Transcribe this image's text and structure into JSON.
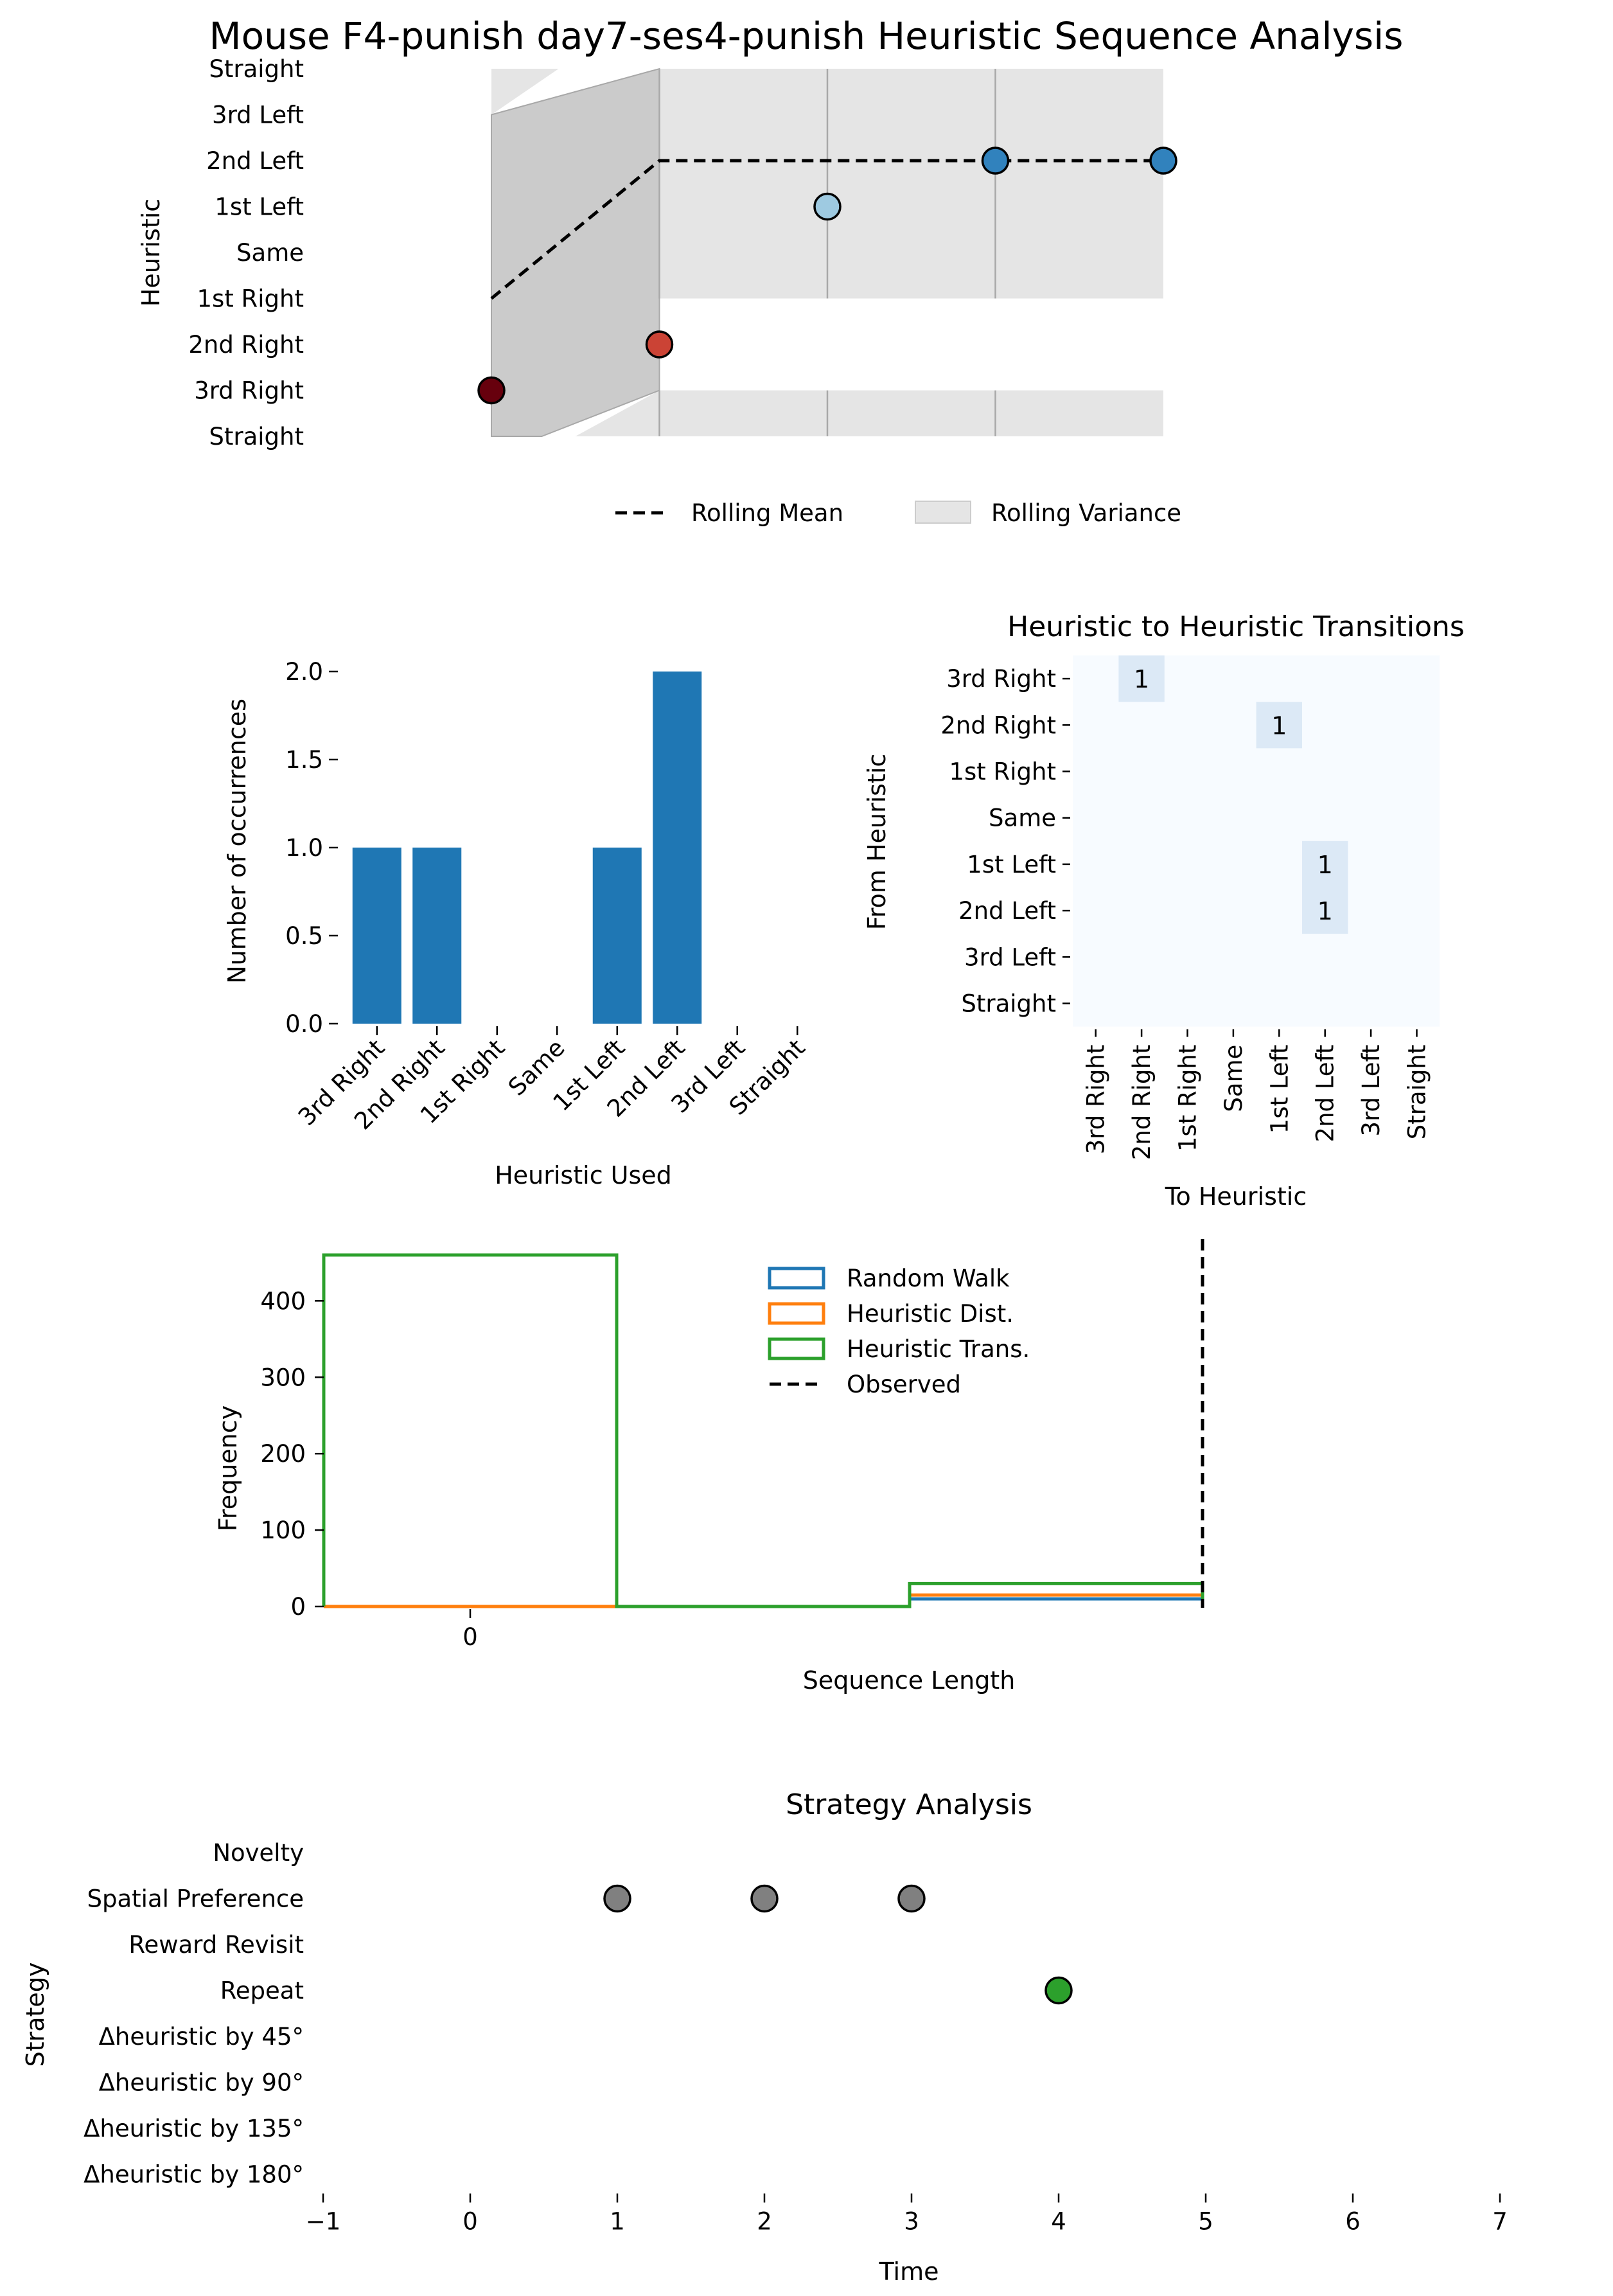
{
  "figure_title": "Mouse F4-punish day7-ses4-punish Heuristic Sequence Analysis",
  "colors": {
    "bar": "#1f77b4",
    "random_walk": "#1f77b4",
    "heuristic_dist": "#ff7f0e",
    "heuristic_trans": "#2ca02c",
    "strategy_gray": "#808080",
    "strategy_green": "#2ca02c",
    "variance_fill": "#e5e5e5",
    "heat_low": "#f7fbff",
    "heat_one": "#dce9f6"
  },
  "chart_data": [
    {
      "id": "heuristic-sequence",
      "type": "scatter",
      "ylabel": "Heuristic",
      "y_categories": [
        "Straight",
        "3rd Left",
        "2nd Left",
        "1st Left",
        "Same",
        "1st Right",
        "2nd Right",
        "3rd Right",
        "Straight"
      ],
      "points": [
        {
          "x": 0,
          "category": "3rd Right",
          "color": "#67000d"
        },
        {
          "x": 1,
          "category": "2nd Right",
          "color": "#cb4335"
        },
        {
          "x": 2,
          "category": "1st Left",
          "color": "#9ecae1"
        },
        {
          "x": 3,
          "category": "2nd Left",
          "color": "#3182bd"
        },
        {
          "x": 4,
          "category": "2nd Left",
          "color": "#3182bd"
        }
      ],
      "rolling_mean": {
        "x": [
          0,
          1,
          2,
          3,
          4
        ],
        "y": [
          "1st Right",
          "2nd Left",
          "2nd Left",
          "2nd Left",
          "2nd Left"
        ]
      },
      "legend": [
        "Rolling Mean",
        "Rolling Variance"
      ]
    },
    {
      "id": "heuristic-counts",
      "type": "bar",
      "xlabel": "Heuristic Used",
      "ylabel": "Number of occurrences",
      "categories": [
        "3rd Right",
        "2nd Right",
        "1st Right",
        "Same",
        "1st Left",
        "2nd Left",
        "3rd Left",
        "Straight"
      ],
      "values": [
        1,
        1,
        0,
        0,
        1,
        2,
        0,
        0
      ],
      "ylim": [
        0,
        2.0
      ],
      "yticks": [
        "0.0",
        "0.5",
        "1.0",
        "1.5",
        "2.0"
      ]
    },
    {
      "id": "transitions",
      "type": "heatmap",
      "title": "Heuristic to Heuristic Transitions",
      "xlabel": "To Heuristic",
      "ylabel": "From Heuristic",
      "rows": [
        "3rd Right",
        "2nd Right",
        "1st Right",
        "Same",
        "1st Left",
        "2nd Left",
        "3rd Left",
        "Straight"
      ],
      "cols": [
        "3rd Right",
        "2nd Right",
        "1st Right",
        "Same",
        "1st Left",
        "2nd Left",
        "3rd Left",
        "Straight"
      ],
      "cells": [
        {
          "row": "3rd Right",
          "col": "2nd Right",
          "value": 1
        },
        {
          "row": "2nd Right",
          "col": "1st Left",
          "value": 1
        },
        {
          "row": "1st Left",
          "col": "2nd Left",
          "value": 1
        },
        {
          "row": "2nd Left",
          "col": "2nd Left",
          "value": 1
        }
      ],
      "cell_labels": [
        "1",
        "1",
        "1",
        "1"
      ]
    },
    {
      "id": "sequence-length",
      "type": "histogram",
      "xlabel": "Sequence Length",
      "ylabel": "Frequency",
      "xticks": [
        "0"
      ],
      "yticks": [
        "0",
        "100",
        "200",
        "300",
        "400"
      ],
      "ylim": [
        0,
        460
      ],
      "xlim": [
        -1,
        5
      ],
      "bins": [
        [
          -1,
          1
        ],
        [
          1,
          3
        ],
        [
          3,
          5
        ]
      ],
      "series": [
        {
          "name": "Random Walk",
          "values": [
            0,
            0,
            10
          ]
        },
        {
          "name": "Heuristic Dist.",
          "values": [
            0,
            0,
            15
          ]
        },
        {
          "name": "Heuristic Trans.",
          "values": [
            460,
            0,
            30
          ]
        }
      ],
      "observed": 5,
      "legend": [
        "Random Walk",
        "Heuristic Dist.",
        "Heuristic Trans.",
        "Observed"
      ],
      "legend_position": "top-center"
    },
    {
      "id": "strategy",
      "type": "scatter",
      "title": "Strategy Analysis",
      "xlabel": "Time",
      "ylabel": "Strategy",
      "y_categories": [
        "Novelty",
        "Spatial Preference",
        "Reward Revisit",
        "Repeat",
        "Δheuristic by 45°",
        "Δheuristic by 90°",
        "Δheuristic by 135°",
        "Δheuristic by 180°"
      ],
      "xticks": [
        "−1",
        "0",
        "1",
        "2",
        "3",
        "4",
        "5",
        "6",
        "7"
      ],
      "xlim": [
        -1,
        7
      ],
      "points": [
        {
          "x": 1,
          "category": "Spatial Preference",
          "color": "#808080"
        },
        {
          "x": 2,
          "category": "Spatial Preference",
          "color": "#808080"
        },
        {
          "x": 3,
          "category": "Spatial Preference",
          "color": "#808080"
        },
        {
          "x": 4,
          "category": "Repeat",
          "color": "#2ca02c"
        }
      ]
    }
  ]
}
